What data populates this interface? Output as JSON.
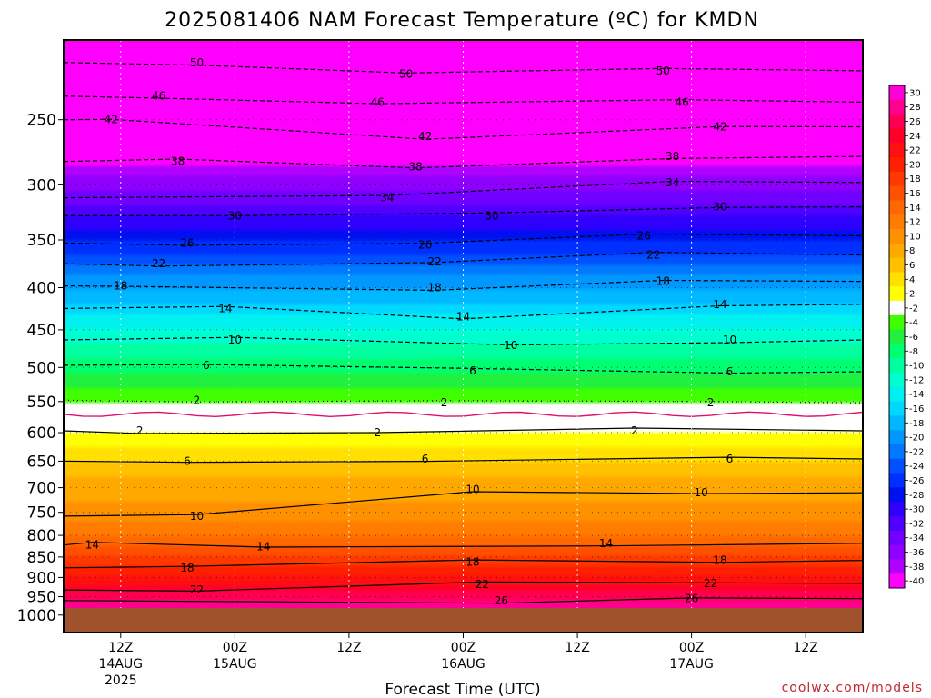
{
  "chart_data": {
    "type": "heatmap",
    "title": "2025081406 NAM Forecast Temperature (ºC) for KMDN",
    "xlabel": "Forecast Time (UTC)",
    "ylabel": "",
    "credit": "coolwx.com/models",
    "y_axis": {
      "scale": "log-pressure",
      "range_hpa": [
        1050,
        200
      ],
      "ticks": [
        250,
        300,
        350,
        400,
        450,
        500,
        550,
        600,
        650,
        700,
        750,
        800,
        850,
        900,
        950,
        1000
      ]
    },
    "x_axis": {
      "range_hours": [
        0,
        84
      ],
      "ticks": [
        {
          "hour": 6,
          "lines": [
            "12Z",
            "14AUG",
            "2025"
          ]
        },
        {
          "hour": 18,
          "lines": [
            "00Z",
            "15AUG"
          ]
        },
        {
          "hour": 30,
          "lines": [
            "12Z"
          ]
        },
        {
          "hour": 42,
          "lines": [
            "00Z",
            "16AUG"
          ]
        },
        {
          "hour": 54,
          "lines": [
            "12Z"
          ]
        },
        {
          "hour": 66,
          "lines": [
            "00Z",
            "17AUG"
          ]
        },
        {
          "hour": 78,
          "lines": [
            "12Z"
          ]
        }
      ]
    },
    "colorbar": {
      "levels": [
        30,
        28,
        26,
        24,
        22,
        20,
        18,
        16,
        14,
        12,
        10,
        8,
        6,
        4,
        2,
        -2,
        -4,
        -6,
        -8,
        -10,
        -12,
        -14,
        -16,
        -18,
        -20,
        -22,
        -24,
        -26,
        -28,
        -30,
        -32,
        -34,
        -36,
        -38,
        -40
      ],
      "colors": [
        "#ff00d8",
        "#ff0090",
        "#ff0050",
        "#ff0028",
        "#ff1010",
        "#ff2000",
        "#ff3800",
        "#ff5000",
        "#ff6800",
        "#ff7c00",
        "#ff9000",
        "#ffa800",
        "#ffc000",
        "#ffe000",
        "#ffff00",
        "#ffffff",
        "#40ff00",
        "#20f040",
        "#00ff70",
        "#00ffa0",
        "#00ffd0",
        "#00f0f0",
        "#00d8ff",
        "#00b8ff",
        "#0098ff",
        "#0078ff",
        "#0050ff",
        "#0030ff",
        "#0010f0",
        "#3000ff",
        "#5000ff",
        "#7000ff",
        "#9000ff",
        "#b000ff",
        "#ff00ff"
      ]
    },
    "contours": [
      {
        "value": 26,
        "style": "solid",
        "label_points": [
          [
            46,
            960
          ],
          [
            66,
            955
          ]
        ]
      },
      {
        "value": 22,
        "style": "solid",
        "label_points": [
          [
            14,
            932
          ],
          [
            44,
            918
          ],
          [
            68,
            915
          ]
        ]
      },
      {
        "value": 18,
        "style": "solid",
        "label_points": [
          [
            13,
            876
          ],
          [
            43,
            862
          ],
          [
            69,
            858
          ]
        ]
      },
      {
        "value": 14,
        "style": "solid",
        "label_points": [
          [
            3,
            822
          ],
          [
            21,
            826
          ],
          [
            57,
            818
          ]
        ]
      },
      {
        "value": 10,
        "style": "solid",
        "label_points": [
          [
            14,
            758
          ],
          [
            43,
            703
          ],
          [
            67,
            710
          ]
        ]
      },
      {
        "value": 6,
        "style": "solid",
        "label_points": [
          [
            13,
            650
          ],
          [
            38,
            646
          ],
          [
            70,
            646
          ]
        ]
      },
      {
        "value": 2,
        "style": "solid",
        "label_points": [
          [
            8,
            597
          ],
          [
            33,
            600
          ],
          [
            60,
            597
          ]
        ]
      },
      {
        "value": -2,
        "style": "dotted",
        "label_points": [
          [
            14,
            548
          ],
          [
            40,
            552
          ],
          [
            68,
            552
          ]
        ]
      },
      {
        "value": -6,
        "style": "dashed",
        "label_points": [
          [
            15,
            497
          ],
          [
            43,
            505
          ],
          [
            70,
            506
          ]
        ]
      },
      {
        "value": -10,
        "style": "dashed",
        "label_points": [
          [
            18,
            463
          ],
          [
            47,
            470
          ],
          [
            70,
            463
          ]
        ]
      },
      {
        "value": -14,
        "style": "dashed",
        "label_points": [
          [
            17,
            424
          ],
          [
            42,
            434
          ],
          [
            69,
            419
          ]
        ]
      },
      {
        "value": -18,
        "style": "dashed",
        "label_points": [
          [
            6,
            398
          ],
          [
            39,
            400
          ],
          [
            63,
            393
          ]
        ]
      },
      {
        "value": -22,
        "style": "dashed",
        "label_points": [
          [
            10,
            374
          ],
          [
            39,
            372
          ],
          [
            62,
            365
          ]
        ]
      },
      {
        "value": -26,
        "style": "dashed",
        "label_points": [
          [
            13,
            353
          ],
          [
            38,
            355
          ],
          [
            61,
            346
          ]
        ]
      },
      {
        "value": -30,
        "style": "dashed",
        "label_points": [
          [
            18,
            327
          ],
          [
            45,
            327
          ],
          [
            69,
            319
          ]
        ]
      },
      {
        "value": -34,
        "style": "dashed",
        "label_points": [
          [
            34,
            311
          ],
          [
            64,
            298
          ]
        ]
      },
      {
        "value": -38,
        "style": "dashed",
        "label_points": [
          [
            12,
            281
          ],
          [
            37,
            285
          ],
          [
            64,
            277
          ]
        ]
      },
      {
        "value": -42,
        "style": "dashed",
        "label_points": [
          [
            5,
            250
          ],
          [
            38,
            262
          ],
          [
            69,
            255
          ]
        ]
      },
      {
        "value": -46,
        "style": "dashed",
        "label_points": [
          [
            10,
            234
          ],
          [
            33,
            238
          ],
          [
            65,
            238
          ]
        ]
      },
      {
        "value": -50,
        "style": "dashed",
        "label_points": [
          [
            14,
            213
          ],
          [
            36,
            220
          ],
          [
            63,
            218
          ]
        ]
      }
    ],
    "freezing_line": {
      "value": 0,
      "color": "#e0106a"
    }
  }
}
